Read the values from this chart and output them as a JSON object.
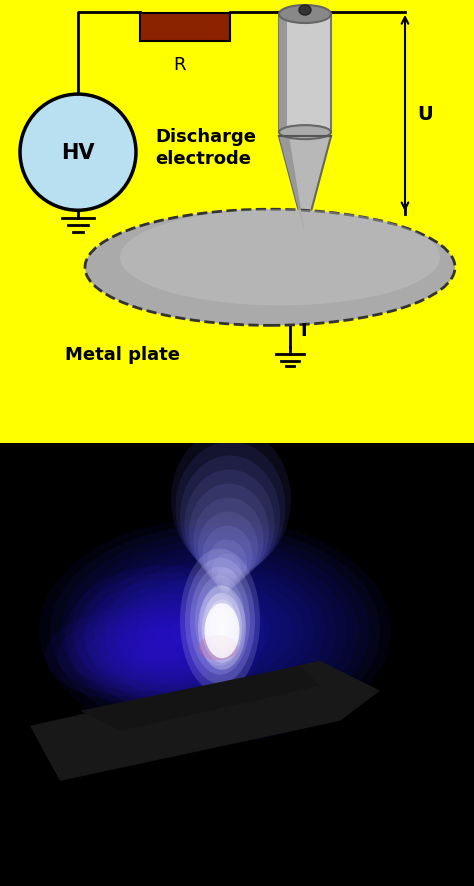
{
  "fig_width": 4.74,
  "fig_height": 8.87,
  "dpi": 100,
  "top_panel_bg": "#FFFF00",
  "hv_circle_color": "#B8E0F0",
  "hv_circle_edge": "#000000",
  "hv_text": "HV",
  "resistor_color": "#8B2200",
  "resistor_label": "R",
  "discharge_label": "Discharge\nelectrode",
  "metal_plate_label": "Metal plate",
  "voltage_label": "U",
  "current_label": "I",
  "electrode_body_color": "#C8C8C8",
  "metal_plate_color": "#AAAAAA",
  "wire_color": "#000000"
}
